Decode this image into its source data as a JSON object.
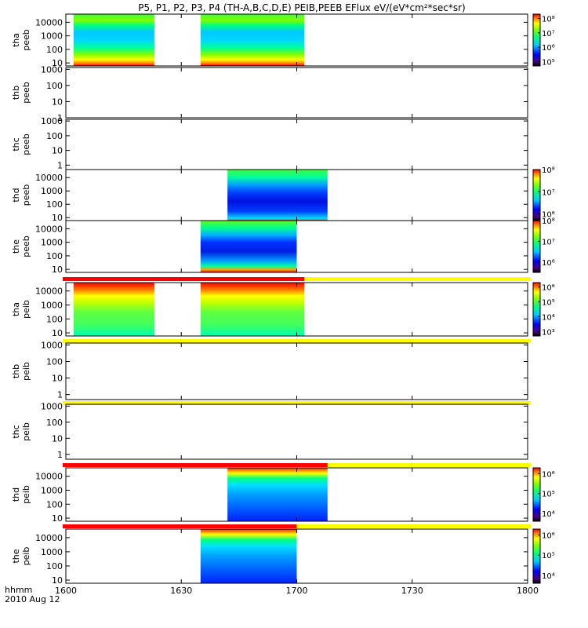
{
  "title": "P5, P1, P2, P3, P4 (TH-A,B,C,D,E) PEIB,PEEB EFlux eV/(eV*cm²*sec*sr)",
  "time_axis": {
    "label_line1": "hhmm",
    "label_line2": "2010 Aug 12",
    "range_minutes": [
      960,
      1080
    ],
    "ticks": [
      {
        "minute": 960,
        "label": "1600"
      },
      {
        "minute": 990,
        "label": "1630"
      },
      {
        "minute": 1020,
        "label": "1700"
      },
      {
        "minute": 1050,
        "label": "1730"
      },
      {
        "minute": 1080,
        "label": "1800"
      }
    ]
  },
  "chart_data": {
    "type": "heatmap",
    "x_units": "hhmm (2010 Aug 12)",
    "y_units": "eV",
    "panels": [
      {
        "probe": "tha",
        "instrument": "peeb",
        "ylabel": [
          "tha",
          "peeb"
        ],
        "y_ticks": [
          "10",
          "100",
          "1000",
          "10000"
        ],
        "ylim": [
          6,
          40000
        ],
        "data_intervals": [
          [
            962,
            983
          ],
          [
            995,
            1022
          ]
        ],
        "colorbar_ticks": [
          "10⁵",
          "10⁶",
          "10⁷",
          "10⁸"
        ],
        "colorbar_range_log": [
          4.7,
          8.3
        ],
        "top_flag": null
      },
      {
        "probe": "thb",
        "instrument": "peeb",
        "ylabel": [
          "thb",
          "peeb"
        ],
        "y_ticks": [
          "1",
          "10",
          "100",
          "1000"
        ],
        "ylim": [
          1,
          1300
        ],
        "data_intervals": [],
        "colorbar_ticks": null,
        "top_flag": null
      },
      {
        "probe": "thc",
        "instrument": "peeb",
        "ylabel": [
          "thc",
          "peeb"
        ],
        "y_ticks": [
          "1",
          "10",
          "100",
          "1000"
        ],
        "ylim": [
          0.5,
          1300
        ],
        "data_intervals": [],
        "colorbar_ticks": null,
        "top_flag": null
      },
      {
        "probe": "thd",
        "instrument": "peeb",
        "ylabel": [
          "thd",
          "peeb"
        ],
        "y_ticks": [
          "10",
          "100",
          "1000",
          "10000"
        ],
        "ylim": [
          6,
          40000
        ],
        "data_intervals": [
          [
            1002,
            1028
          ]
        ],
        "colorbar_ticks": [
          "10⁶",
          "10⁷",
          "10⁸"
        ],
        "colorbar_range_log": [
          5.7,
          8.0
        ],
        "top_flag": null
      },
      {
        "probe": "the",
        "instrument": "peeb",
        "ylabel": [
          "the",
          "peeb"
        ],
        "y_ticks": [
          "10",
          "100",
          "1000",
          "10000"
        ],
        "ylim": [
          6,
          40000
        ],
        "data_intervals": [
          [
            995,
            1020
          ]
        ],
        "colorbar_ticks": [
          "10⁶",
          "10⁷",
          "10⁸"
        ],
        "colorbar_range_log": [
          5.5,
          8.0
        ],
        "top_flag": null
      },
      {
        "probe": "tha",
        "instrument": "peib",
        "ylabel": [
          "tha",
          "peib"
        ],
        "y_ticks": [
          "10",
          "100",
          "1000",
          "10000"
        ],
        "ylim": [
          6,
          40000
        ],
        "data_intervals": [
          [
            962,
            983
          ],
          [
            995,
            1022
          ]
        ],
        "colorbar_ticks": [
          "10³",
          "10⁴",
          "10⁵",
          "10⁶"
        ],
        "colorbar_range_log": [
          2.7,
          6.3
        ],
        "top_flag": {
          "red_until_minute": 1022
        }
      },
      {
        "probe": "thb",
        "instrument": "peib",
        "ylabel": [
          "thb",
          "peib"
        ],
        "y_ticks": [
          "1",
          "10",
          "100",
          "1000"
        ],
        "ylim": [
          0.5,
          1300
        ],
        "data_intervals": [],
        "colorbar_ticks": null,
        "top_flag": {
          "red_until_minute": 960
        }
      },
      {
        "probe": "thc",
        "instrument": "peib",
        "ylabel": [
          "thc",
          "peib"
        ],
        "y_ticks": [
          "1",
          "10",
          "100",
          "1000"
        ],
        "ylim": [
          0.5,
          1300
        ],
        "data_intervals": [],
        "colorbar_ticks": null,
        "top_flag": {
          "red_until_minute": 960
        }
      },
      {
        "probe": "thd",
        "instrument": "peib",
        "ylabel": [
          "thd",
          "peib"
        ],
        "y_ticks": [
          "10",
          "100",
          "1000",
          "10000"
        ],
        "ylim": [
          6,
          40000
        ],
        "data_intervals": [
          [
            1002,
            1028
          ]
        ],
        "colorbar_ticks": [
          "10⁴",
          "10⁵",
          "10⁶"
        ],
        "colorbar_range_log": [
          3.6,
          6.3
        ],
        "top_flag": {
          "red_until_minute": 1028
        }
      },
      {
        "probe": "the",
        "instrument": "peib",
        "ylabel": [
          "the",
          "peib"
        ],
        "y_ticks": [
          "10",
          "100",
          "1000",
          "10000"
        ],
        "ylim": [
          6,
          40000
        ],
        "data_intervals": [
          [
            995,
            1020
          ]
        ],
        "colorbar_ticks": [
          "10⁴",
          "10⁵",
          "10⁶"
        ],
        "colorbar_range_log": [
          3.6,
          6.3
        ],
        "top_flag": {
          "red_until_minute": 1020
        }
      }
    ]
  },
  "colors": {
    "flag_red": "#ff0000",
    "flag_yellow": "#ffff00",
    "axis": "#000000"
  }
}
